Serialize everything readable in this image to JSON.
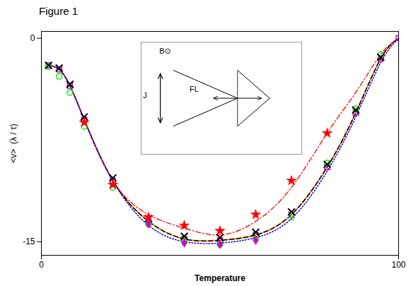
{
  "chart_data": {
    "type": "line",
    "title": "Figure 1",
    "xlabel": "Temperature",
    "ylabel": "<v>  (λ / τ)",
    "xlim": [
      0,
      100
    ],
    "ylim": [
      -16,
      0.5
    ],
    "xticks": [
      0,
      100
    ],
    "yticks": [
      -15,
      0
    ],
    "annotations": [
      "B⊙",
      "FL",
      "J"
    ],
    "series": [
      {
        "type": "line",
        "color": "#ff8c00",
        "line_style": "solid",
        "x": [
          2,
          5,
          8,
          12,
          20,
          30,
          40,
          50,
          60,
          70,
          80,
          88,
          95,
          100
        ],
        "values": [
          -2.0,
          -2.3,
          -3.5,
          -6.0,
          -10.5,
          -13.5,
          -14.8,
          -14.9,
          -14.5,
          -13.0,
          -9.5,
          -5.5,
          -1.5,
          0.0
        ]
      },
      {
        "type": "line",
        "color": "#000000",
        "line_style": "dashed",
        "x": [
          2,
          5,
          8,
          12,
          20,
          30,
          40,
          50,
          60,
          70,
          80,
          88,
          95,
          100
        ],
        "values": [
          -2.0,
          -2.3,
          -3.5,
          -6.0,
          -10.5,
          -13.5,
          -14.8,
          -14.9,
          -14.5,
          -13.0,
          -9.5,
          -5.5,
          -1.5,
          0.0
        ]
      },
      {
        "type": "line",
        "color": "#ff0000",
        "line_style": "dashdot",
        "x": [
          2,
          5,
          8,
          12,
          20,
          30,
          40,
          50,
          60,
          70,
          80,
          88,
          95,
          100
        ],
        "values": [
          -2.0,
          -2.3,
          -3.5,
          -6.0,
          -10.5,
          -13.0,
          -14.0,
          -14.5,
          -13.5,
          -11.0,
          -7.0,
          -4.0,
          -1.2,
          0.0
        ]
      },
      {
        "type": "line",
        "color": "#0000ff",
        "line_style": "dotted",
        "x": [
          2,
          5,
          8,
          12,
          20,
          30,
          40,
          50,
          60,
          70,
          80,
          88,
          95,
          100
        ],
        "values": [
          -2.0,
          -2.3,
          -3.5,
          -6.0,
          -10.5,
          -13.8,
          -15.0,
          -15.1,
          -14.7,
          -13.3,
          -9.8,
          -5.8,
          -1.8,
          0.0
        ]
      },
      {
        "type": "scatter",
        "color": "#cc00cc",
        "marker": "square_open",
        "x": [
          2,
          5,
          8,
          12,
          20,
          30,
          40,
          50,
          60,
          70,
          80,
          88,
          95,
          100
        ],
        "values": [
          -2.0,
          -2.3,
          -3.5,
          -6.0,
          -10.5,
          -13.5,
          -14.8,
          -14.9,
          -14.5,
          -13.0,
          -9.5,
          -5.5,
          -1.5,
          0.0
        ]
      },
      {
        "type": "scatter",
        "color": "#00ee00",
        "marker": "circle_open",
        "x": [
          2,
          5,
          8,
          12,
          20,
          30,
          40,
          50,
          60,
          70,
          80,
          88,
          95
        ],
        "values": [
          -2.1,
          -2.8,
          -4.0,
          -6.5,
          -11.0,
          -13.7,
          -15.0,
          -15.2,
          -14.8,
          -13.2,
          -9.2,
          -5.2,
          -1.2
        ]
      },
      {
        "type": "scatter",
        "color": "#000000",
        "marker": "x",
        "x": [
          2,
          5,
          8,
          12,
          20,
          30,
          40,
          50,
          60,
          70,
          80,
          88,
          95
        ],
        "values": [
          -2.0,
          -2.2,
          -3.4,
          -5.8,
          -10.3,
          -13.3,
          -14.6,
          -14.7,
          -14.3,
          -12.8,
          -9.3,
          -5.3,
          -1.4
        ]
      },
      {
        "type": "scatter",
        "color": "#ff0000",
        "marker": "star",
        "x": [
          12,
          20,
          30,
          40,
          50,
          60,
          70,
          80
        ],
        "values": [
          -6.2,
          -10.8,
          -13.2,
          -13.8,
          -14.2,
          -13.0,
          -10.5,
          -7.0
        ]
      },
      {
        "type": "scatter",
        "color": "#cc00cc",
        "marker": "diamond",
        "x": [
          30,
          40,
          50,
          60
        ],
        "values": [
          -13.7,
          -15.1,
          -15.2,
          -14.9
        ]
      }
    ]
  }
}
